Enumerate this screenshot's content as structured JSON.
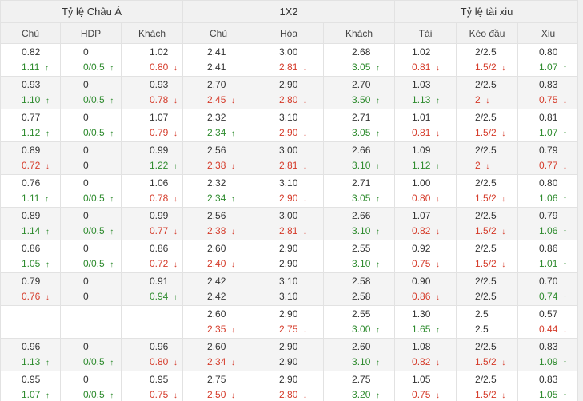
{
  "groups": [
    "Tỷ lệ Châu Á",
    "1X2",
    "Tỷ lệ tài xiu"
  ],
  "columns": [
    "Chủ",
    "HDP",
    "Khách",
    "Chủ",
    "Hòa",
    "Khách",
    "Tài",
    "Kèo đầu",
    "Xiu"
  ],
  "rows": [
    [
      [
        "0.82",
        "",
        "1.11",
        "up"
      ],
      [
        "0",
        "",
        "0/0.5",
        "up"
      ],
      [
        "1.02",
        "",
        "0.80",
        "down"
      ],
      [
        "2.41",
        "",
        "2.41",
        ""
      ],
      [
        "3.00",
        "",
        "2.81",
        "down"
      ],
      [
        "2.68",
        "",
        "3.05",
        "up"
      ],
      [
        "1.02",
        "",
        "0.81",
        "down"
      ],
      [
        "2/2.5",
        "",
        "1.5/2",
        "down"
      ],
      [
        "0.80",
        "",
        "1.07",
        "up"
      ]
    ],
    [
      [
        "0.93",
        "",
        "1.10",
        "up"
      ],
      [
        "0",
        "",
        "0/0.5",
        "up"
      ],
      [
        "0.93",
        "",
        "0.78",
        "down"
      ],
      [
        "2.70",
        "",
        "2.45",
        "down"
      ],
      [
        "2.90",
        "",
        "2.80",
        "down"
      ],
      [
        "2.70",
        "",
        "3.50",
        "up"
      ],
      [
        "1.03",
        "",
        "1.13",
        "up"
      ],
      [
        "2/2.5",
        "",
        "2",
        "down"
      ],
      [
        "0.83",
        "",
        "0.75",
        "down"
      ]
    ],
    [
      [
        "0.77",
        "",
        "1.12",
        "up"
      ],
      [
        "0",
        "",
        "0/0.5",
        "up"
      ],
      [
        "1.07",
        "",
        "0.79",
        "down"
      ],
      [
        "2.32",
        "",
        "2.34",
        "up"
      ],
      [
        "3.10",
        "",
        "2.90",
        "down"
      ],
      [
        "2.71",
        "",
        "3.05",
        "up"
      ],
      [
        "1.01",
        "",
        "0.81",
        "down"
      ],
      [
        "2/2.5",
        "",
        "1.5/2",
        "down"
      ],
      [
        "0.81",
        "",
        "1.07",
        "up"
      ]
    ],
    [
      [
        "0.89",
        "",
        "0.72",
        "down"
      ],
      [
        "0",
        "",
        "0",
        ""
      ],
      [
        "0.99",
        "",
        "1.22",
        "up"
      ],
      [
        "2.56",
        "",
        "2.38",
        "down"
      ],
      [
        "3.00",
        "",
        "2.81",
        "down"
      ],
      [
        "2.66",
        "",
        "3.10",
        "up"
      ],
      [
        "1.09",
        "",
        "1.12",
        "up"
      ],
      [
        "2/2.5",
        "",
        "2",
        "down"
      ],
      [
        "0.79",
        "",
        "0.77",
        "down"
      ]
    ],
    [
      [
        "0.76",
        "",
        "1.11",
        "up"
      ],
      [
        "0",
        "",
        "0/0.5",
        "up"
      ],
      [
        "1.06",
        "",
        "0.78",
        "down"
      ],
      [
        "2.32",
        "",
        "2.34",
        "up"
      ],
      [
        "3.10",
        "",
        "2.90",
        "down"
      ],
      [
        "2.71",
        "",
        "3.05",
        "up"
      ],
      [
        "1.00",
        "",
        "0.80",
        "down"
      ],
      [
        "2/2.5",
        "",
        "1.5/2",
        "down"
      ],
      [
        "0.80",
        "",
        "1.06",
        "up"
      ]
    ],
    [
      [
        "0.89",
        "",
        "1.14",
        "up"
      ],
      [
        "0",
        "",
        "0/0.5",
        "up"
      ],
      [
        "0.99",
        "",
        "0.77",
        "down"
      ],
      [
        "2.56",
        "",
        "2.38",
        "down"
      ],
      [
        "3.00",
        "",
        "2.81",
        "down"
      ],
      [
        "2.66",
        "",
        "3.10",
        "up"
      ],
      [
        "1.07",
        "",
        "0.82",
        "down"
      ],
      [
        "2/2.5",
        "",
        "1.5/2",
        "down"
      ],
      [
        "0.79",
        "",
        "1.06",
        "up"
      ]
    ],
    [
      [
        "0.86",
        "",
        "1.05",
        "up"
      ],
      [
        "0",
        "",
        "0/0.5",
        "up"
      ],
      [
        "0.86",
        "",
        "0.72",
        "down"
      ],
      [
        "2.60",
        "",
        "2.40",
        "down"
      ],
      [
        "2.90",
        "",
        "2.90",
        ""
      ],
      [
        "2.55",
        "",
        "3.10",
        "up"
      ],
      [
        "0.92",
        "",
        "0.75",
        "down"
      ],
      [
        "2/2.5",
        "",
        "1.5/2",
        "down"
      ],
      [
        "0.86",
        "",
        "1.01",
        "up"
      ]
    ],
    [
      [
        "0.79",
        "",
        "0.76",
        "down"
      ],
      [
        "0",
        "",
        "0",
        ""
      ],
      [
        "0.91",
        "",
        "0.94",
        "up"
      ],
      [
        "2.42",
        "",
        "2.42",
        ""
      ],
      [
        "3.10",
        "",
        "3.10",
        ""
      ],
      [
        "2.58",
        "",
        "2.58",
        ""
      ],
      [
        "0.90",
        "",
        "0.86",
        "down"
      ],
      [
        "2/2.5",
        "",
        "2/2.5",
        ""
      ],
      [
        "0.70",
        "",
        "0.74",
        "up"
      ]
    ],
    [
      [
        "",
        "",
        "",
        ""
      ],
      [
        "",
        "",
        "",
        ""
      ],
      [
        "",
        "",
        "",
        ""
      ],
      [
        "2.60",
        "",
        "2.35",
        "down"
      ],
      [
        "2.90",
        "",
        "2.75",
        "down"
      ],
      [
        "2.55",
        "",
        "3.00",
        "up"
      ],
      [
        "1.30",
        "",
        "1.65",
        "up"
      ],
      [
        "2.5",
        "",
        "2.5",
        ""
      ],
      [
        "0.57",
        "",
        "0.44",
        "down"
      ]
    ],
    [
      [
        "0.96",
        "",
        "1.13",
        "up"
      ],
      [
        "0",
        "",
        "0/0.5",
        "up"
      ],
      [
        "0.96",
        "",
        "0.80",
        "down"
      ],
      [
        "2.60",
        "",
        "2.34",
        "down"
      ],
      [
        "2.90",
        "",
        "2.90",
        ""
      ],
      [
        "2.60",
        "",
        "3.10",
        "up"
      ],
      [
        "1.08",
        "",
        "0.82",
        "down"
      ],
      [
        "2/2.5",
        "",
        "1.5/2",
        "down"
      ],
      [
        "0.83",
        "",
        "1.09",
        "up"
      ]
    ],
    [
      [
        "0.95",
        "",
        "1.07",
        "up"
      ],
      [
        "0",
        "",
        "0/0.5",
        "up"
      ],
      [
        "0.95",
        "",
        "0.75",
        "down"
      ],
      [
        "2.75",
        "",
        "2.50",
        "down"
      ],
      [
        "2.90",
        "",
        "2.80",
        "down"
      ],
      [
        "2.75",
        "",
        "3.20",
        "up"
      ],
      [
        "1.05",
        "",
        "0.75",
        "down"
      ],
      [
        "2/2.5",
        "",
        "1.5/2",
        "down"
      ],
      [
        "0.83",
        "",
        "1.05",
        "up"
      ]
    ]
  ],
  "colors": {
    "up": "#2e8b2e",
    "down": "#d53b2a",
    "header_bg": "#f1f1f1",
    "alt_row_bg": "#f4f4f4",
    "border": "#e2e2e2"
  }
}
